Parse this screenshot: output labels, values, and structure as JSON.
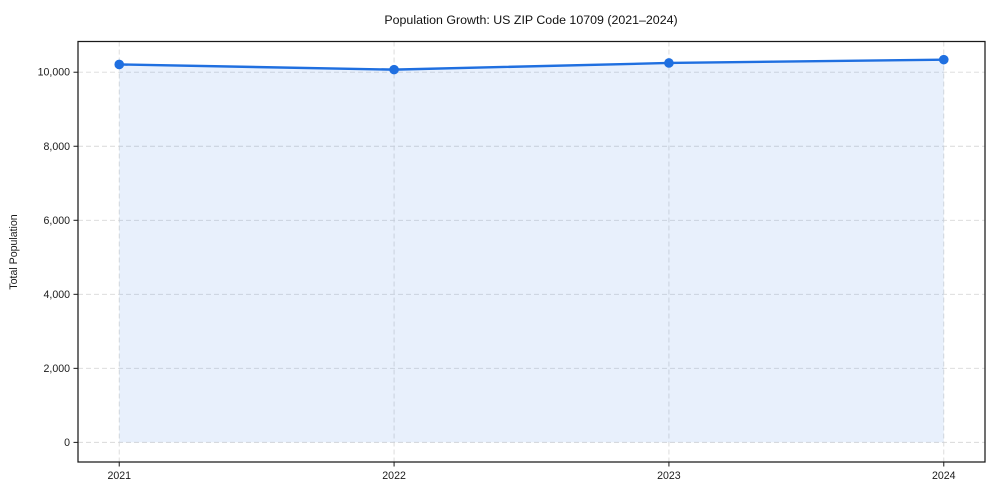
{
  "chart_data": {
    "type": "line",
    "title": "Population Growth: US ZIP Code 10709 (2021–2024)",
    "xlabel": "",
    "ylabel": "Total Population",
    "x": [
      2021,
      2022,
      2023,
      2024
    ],
    "xtick_labels": [
      "2021",
      "2022",
      "2023",
      "2024"
    ],
    "series": [
      {
        "name": "Total Population",
        "values": [
          10210,
          10070,
          10250,
          10340
        ]
      }
    ],
    "yticks": [
      0,
      2000,
      4000,
      6000,
      8000,
      10000
    ],
    "ytick_labels": [
      "0",
      "2,000",
      "4,000",
      "6,000",
      "8,000",
      "10,000"
    ],
    "xlim": [
      2020.85,
      2024.15
    ],
    "ylim": [
      -530,
      10830
    ],
    "grid": true,
    "grid_style": "dashed",
    "legend_position": "none",
    "marker": "circle",
    "area_fill": true,
    "colors": {
      "line": "#1f6fe0",
      "marker": "#1f6fe0",
      "fill": "#1f6fe0",
      "fill_opacity": 0.1,
      "grid": "#d9d9d9",
      "spine": "#1a1a1a",
      "text": "#1a1a1a",
      "background": "#ffffff"
    }
  }
}
